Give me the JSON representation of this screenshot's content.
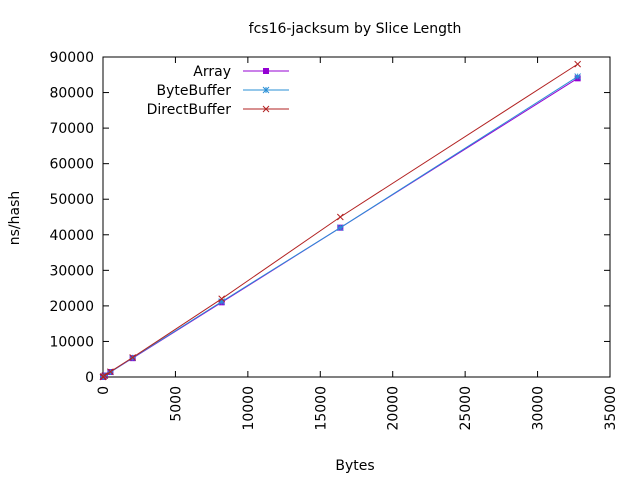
{
  "chart_data": {
    "type": "line",
    "title": "fcs16-jacksum by Slice Length",
    "xlabel": "Bytes",
    "ylabel": "ns/hash",
    "xlim": [
      0,
      35000
    ],
    "ylim": [
      0,
      90000
    ],
    "xticks": [
      0,
      5000,
      10000,
      15000,
      20000,
      25000,
      30000,
      35000
    ],
    "yticks": [
      0,
      10000,
      20000,
      30000,
      40000,
      50000,
      60000,
      70000,
      80000,
      90000
    ],
    "grid": false,
    "legend_position": "top-left",
    "series": [
      {
        "name": "Array",
        "color": "#9400d3",
        "marker": "filled-square",
        "x": [
          1,
          8,
          32,
          128,
          512,
          2048,
          8192,
          16384,
          32768
        ],
        "y": [
          30,
          70,
          130,
          400,
          1400,
          5300,
          21000,
          42000,
          84000
        ]
      },
      {
        "name": "ByteBuffer",
        "color": "#2a8fd6",
        "marker": "star",
        "x": [
          1,
          8,
          32,
          128,
          512,
          2048,
          8192,
          16384,
          32768
        ],
        "y": [
          30,
          70,
          130,
          400,
          1400,
          5400,
          21200,
          42000,
          84500
        ]
      },
      {
        "name": "DirectBuffer",
        "color": "#b22222",
        "marker": "cross",
        "x": [
          1,
          8,
          32,
          128,
          512,
          2048,
          8192,
          16384,
          32768
        ],
        "y": [
          30,
          70,
          130,
          400,
          1500,
          5500,
          22000,
          45000,
          88000
        ]
      }
    ]
  }
}
